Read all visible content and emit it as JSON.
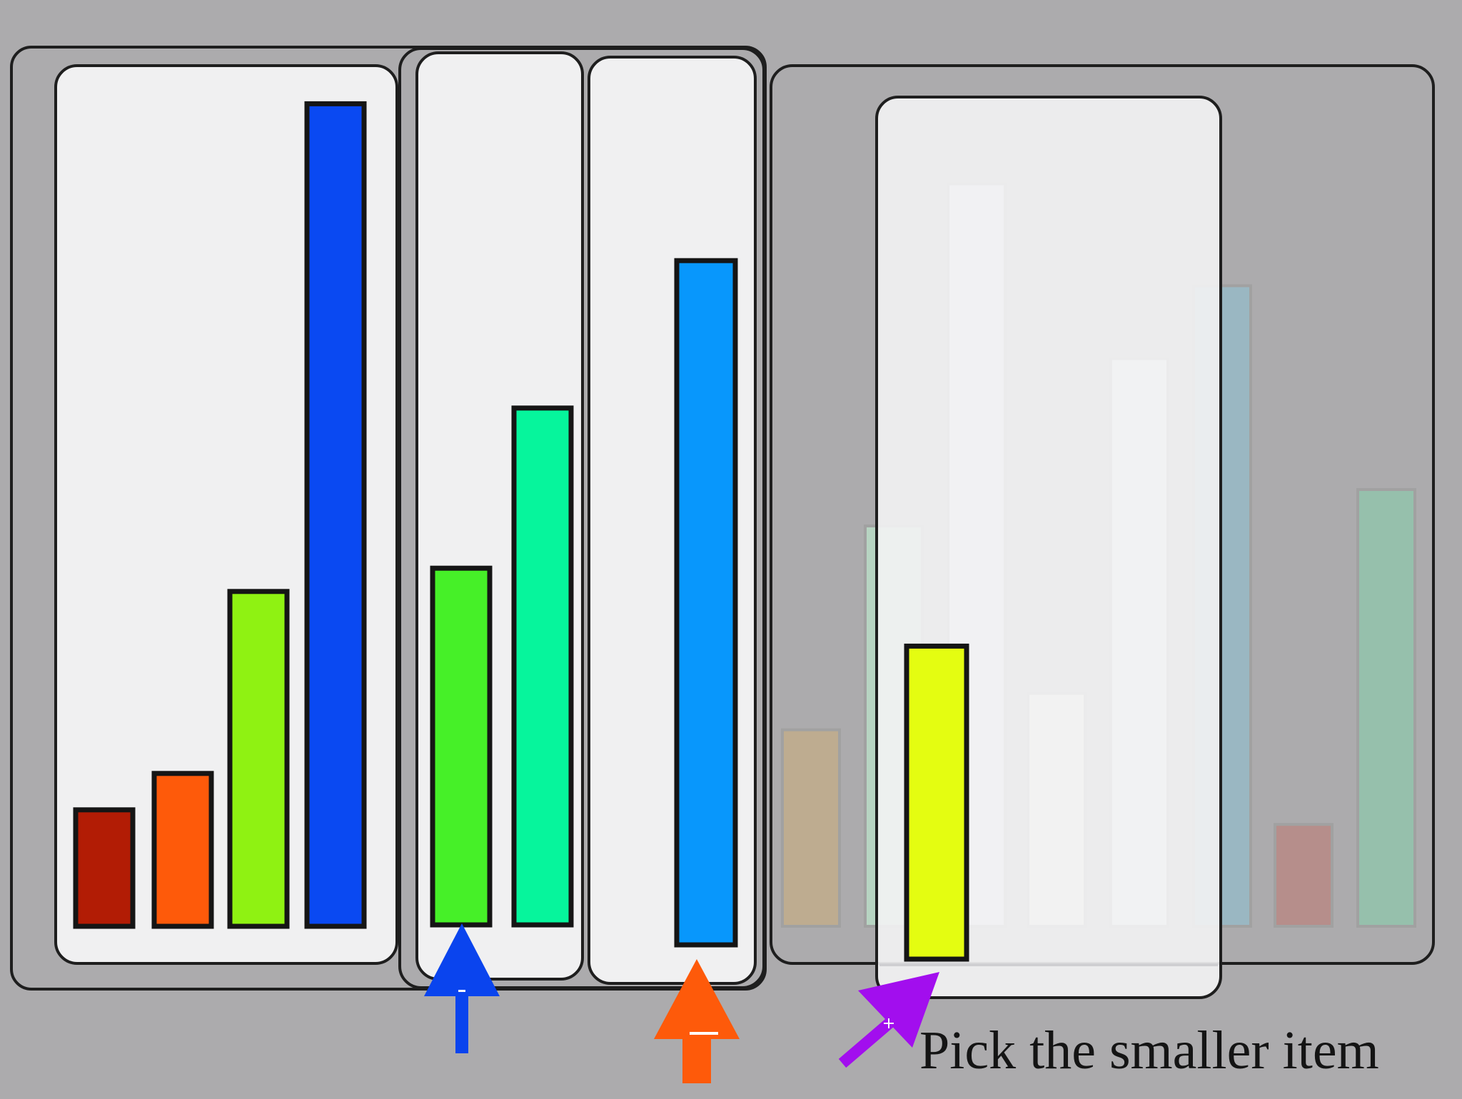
{
  "instruction": "Pick the smaller item",
  "colors": {
    "background": "#acabad",
    "panel_fill": "#f0f0f1",
    "outline": "#1e1e1e",
    "arrow_blue": "#0a44ee",
    "arrow_orange": "#fe5a0a",
    "pointer_purple": "#a20eee"
  },
  "reference_set": {
    "bars": [
      {
        "name": "dark-red",
        "color": "#b21c05",
        "value": 1.6
      },
      {
        "name": "orange",
        "color": "#fe5a0a",
        "value": 2.1
      },
      {
        "name": "yellow-green",
        "color": "#8ff212",
        "value": 4.6
      },
      {
        "name": "blue",
        "color": "#0a49f2",
        "value": 11.3
      }
    ]
  },
  "option_a": {
    "bars": [
      {
        "name": "green",
        "color": "#46f028",
        "value": 4.9
      },
      {
        "name": "teal-green",
        "color": "#06f59c",
        "value": 7.1
      }
    ],
    "pointer_icon": "up-arrow-icon",
    "pointer_color": "#0a44ee"
  },
  "option_b": {
    "bars": [
      {
        "name": "sky-blue",
        "color": "#0897fc",
        "value": 9.4
      }
    ],
    "pointer_icon": "up-arrow-icon",
    "pointer_color": "#fe5a0a"
  },
  "faded_set": {
    "bars": [
      {
        "name": "faded-tan",
        "color": "#c2ad8c",
        "value": 2.7
      },
      {
        "name": "faded-green",
        "color": "#b9dcc6",
        "value": 5.5
      },
      {
        "name": "faded-white-1",
        "color": "#e6ebf3",
        "value": 10.2
      },
      {
        "name": "faded-white-2",
        "color": "#eeeee6",
        "value": 3.2
      },
      {
        "name": "faded-white-3",
        "color": "#e6eeee",
        "value": 7.8
      },
      {
        "name": "faded-blue",
        "color": "#97bac6",
        "value": 8.8
      },
      {
        "name": "faded-rose",
        "color": "#b88a86",
        "value": 1.4
      },
      {
        "name": "faded-sea-green",
        "color": "#93c4ac",
        "value": 6.0
      }
    ]
  },
  "choice_card": {
    "bars": [
      {
        "name": "yellow",
        "color": "#e4fd11",
        "value": 4.3
      }
    ],
    "pointer_icon": "diagonal-arrow-icon",
    "pointer_color": "#a20eee"
  }
}
